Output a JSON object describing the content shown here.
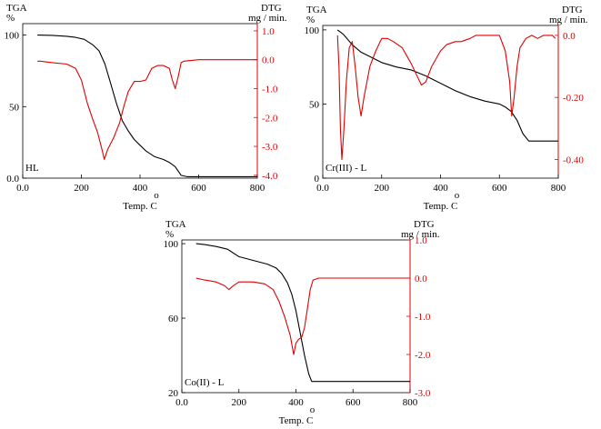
{
  "chart_data": [
    {
      "type": "line",
      "label": "HL",
      "xlabel": "Temp. C",
      "xlabel_degree": "o",
      "xlim": [
        0,
        800
      ],
      "x_ticks": [
        "0.0",
        "200",
        "400",
        "600",
        "800"
      ],
      "x_tick_values": [
        0,
        200,
        400,
        600,
        800
      ],
      "left_axis": {
        "title": "TGA",
        "unit": "%",
        "ylim": [
          0,
          108
        ],
        "ticks": [
          "0.0",
          "50",
          "100"
        ],
        "tick_values": [
          0,
          50,
          100
        ]
      },
      "right_axis": {
        "title": "DTG",
        "unit": "mg / min.",
        "ylim": [
          -4.1,
          1.25
        ],
        "ticks": [
          "1.0",
          "0.0",
          "-1.0",
          "-2.0",
          "-3.0",
          "-4.0"
        ],
        "tick_values": [
          1.0,
          0.0,
          -1.0,
          -2.0,
          -3.0,
          -4.0
        ]
      },
      "series": [
        {
          "axis": "left",
          "color": "#000000",
          "points": [
            [
              50,
              100
            ],
            [
              100,
              99.8
            ],
            [
              150,
              99.2
            ],
            [
              180,
              98.4
            ],
            [
              210,
              97
            ],
            [
              240,
              93
            ],
            [
              260,
              89
            ],
            [
              280,
              80
            ],
            [
              300,
              66
            ],
            [
              320,
              52
            ],
            [
              340,
              40
            ],
            [
              360,
              33
            ],
            [
              380,
              27
            ],
            [
              400,
              23
            ],
            [
              420,
              19
            ],
            [
              450,
              15
            ],
            [
              480,
              13
            ],
            [
              500,
              11
            ],
            [
              520,
              8
            ],
            [
              540,
              2
            ],
            [
              560,
              1
            ],
            [
              600,
              1
            ],
            [
              800,
              1
            ]
          ]
        },
        {
          "axis": "right",
          "color": "#e00000",
          "points": [
            [
              50,
              -0.05
            ],
            [
              60,
              -0.05
            ],
            [
              100,
              -0.1
            ],
            [
              150,
              -0.15
            ],
            [
              180,
              -0.3
            ],
            [
              200,
              -0.7
            ],
            [
              220,
              -1.5
            ],
            [
              240,
              -2.1
            ],
            [
              255,
              -2.5
            ],
            [
              270,
              -3.1
            ],
            [
              278,
              -3.45
            ],
            [
              290,
              -3.1
            ],
            [
              310,
              -2.7
            ],
            [
              330,
              -2.2
            ],
            [
              345,
              -1.6
            ],
            [
              360,
              -1.1
            ],
            [
              380,
              -0.75
            ],
            [
              400,
              -0.75
            ],
            [
              420,
              -0.7
            ],
            [
              440,
              -0.3
            ],
            [
              460,
              -0.2
            ],
            [
              480,
              -0.2
            ],
            [
              500,
              -0.3
            ],
            [
              510,
              -0.7
            ],
            [
              520,
              -1.0
            ],
            [
              530,
              -0.6
            ],
            [
              540,
              -0.1
            ],
            [
              550,
              -0.05
            ],
            [
              600,
              0.0
            ],
            [
              800,
              0.0
            ]
          ]
        }
      ]
    },
    {
      "type": "line",
      "label": "Cr(III) - L",
      "xlabel": "Temp. C",
      "xlabel_degree": "o",
      "xlim": [
        0,
        800
      ],
      "x_ticks": [
        "0.0",
        "200",
        "400",
        "600",
        "800"
      ],
      "x_tick_values": [
        0,
        200,
        400,
        600,
        800
      ],
      "left_axis": {
        "title": "TGA",
        "unit": "%",
        "ylim": [
          0,
          103
        ],
        "ticks": [
          "0",
          "50",
          "100"
        ],
        "tick_values": [
          0,
          50,
          100
        ]
      },
      "right_axis": {
        "title": "DTG",
        "unit": "mg / min.",
        "ylim": [
          -0.46,
          0.032
        ],
        "ticks": [
          "0.0",
          "-0.20",
          "-0.40"
        ],
        "tick_values": [
          0.0,
          -0.2,
          -0.4
        ]
      },
      "series": [
        {
          "axis": "left",
          "color": "#000000",
          "points": [
            [
              50,
              100
            ],
            [
              70,
              97
            ],
            [
              100,
              90
            ],
            [
              130,
              85
            ],
            [
              160,
              82
            ],
            [
              200,
              78
            ],
            [
              250,
              75
            ],
            [
              300,
              73
            ],
            [
              350,
              69
            ],
            [
              400,
              64
            ],
            [
              450,
              59
            ],
            [
              500,
              55
            ],
            [
              550,
              52
            ],
            [
              600,
              50
            ],
            [
              620,
              48
            ],
            [
              640,
              45
            ],
            [
              660,
              39
            ],
            [
              680,
              30
            ],
            [
              700,
              25
            ],
            [
              720,
              25
            ],
            [
              800,
              25
            ]
          ]
        },
        {
          "axis": "right",
          "color": "#e00000",
          "points": [
            [
              50,
              0.0
            ],
            [
              55,
              -0.1
            ],
            [
              60,
              -0.3
            ],
            [
              65,
              -0.4
            ],
            [
              72,
              -0.3
            ],
            [
              80,
              -0.15
            ],
            [
              90,
              -0.04
            ],
            [
              100,
              -0.02
            ],
            [
              110,
              -0.1
            ],
            [
              120,
              -0.2
            ],
            [
              130,
              -0.26
            ],
            [
              140,
              -0.2
            ],
            [
              160,
              -0.1
            ],
            [
              180,
              -0.05
            ],
            [
              200,
              -0.01
            ],
            [
              220,
              -0.01
            ],
            [
              240,
              -0.02
            ],
            [
              270,
              -0.04
            ],
            [
              300,
              -0.09
            ],
            [
              320,
              -0.13
            ],
            [
              335,
              -0.16
            ],
            [
              350,
              -0.15
            ],
            [
              370,
              -0.1
            ],
            [
              400,
              -0.05
            ],
            [
              420,
              -0.03
            ],
            [
              450,
              -0.02
            ],
            [
              470,
              -0.02
            ],
            [
              500,
              -0.01
            ],
            [
              520,
              0.0
            ],
            [
              560,
              0.0
            ],
            [
              600,
              0.0
            ],
            [
              620,
              -0.05
            ],
            [
              635,
              -0.15
            ],
            [
              642,
              -0.26
            ],
            [
              650,
              -0.2
            ],
            [
              660,
              -0.1
            ],
            [
              670,
              -0.04
            ],
            [
              690,
              -0.01
            ],
            [
              710,
              0.0
            ],
            [
              730,
              -0.01
            ],
            [
              750,
              0.0
            ],
            [
              780,
              0.0
            ],
            [
              790,
              -0.01
            ]
          ]
        }
      ]
    },
    {
      "type": "line",
      "label": "Co(II) - L",
      "xlabel": "Temp. C",
      "xlabel_degree": "o",
      "xlim": [
        0,
        800
      ],
      "x_ticks": [
        "0.0",
        "200",
        "400",
        "600",
        "800"
      ],
      "x_tick_values": [
        0,
        200,
        400,
        600,
        800
      ],
      "left_axis": {
        "title": "TGA",
        "unit": "%",
        "ylim": [
          20,
          102
        ],
        "ticks": [
          "20",
          "60",
          "100"
        ],
        "tick_values": [
          20,
          60,
          100
        ]
      },
      "right_axis": {
        "title": "DTG",
        "unit": "mg / min.",
        "ylim": [
          -3.0,
          1.0
        ],
        "ticks": [
          "1.0",
          "0.0",
          "-1.0",
          "-2.0",
          "-3.0"
        ],
        "tick_values": [
          1.0,
          0.0,
          -1.0,
          -2.0,
          -3.0
        ]
      },
      "series": [
        {
          "axis": "left",
          "color": "#000000",
          "points": [
            [
              50,
              100
            ],
            [
              80,
              99.5
            ],
            [
              120,
              98.5
            ],
            [
              160,
              97
            ],
            [
              200,
              93
            ],
            [
              250,
              91
            ],
            [
              300,
              89
            ],
            [
              330,
              87
            ],
            [
              350,
              84
            ],
            [
              370,
              79
            ],
            [
              385,
              73
            ],
            [
              400,
              64
            ],
            [
              415,
              52
            ],
            [
              430,
              40
            ],
            [
              445,
              30
            ],
            [
              455,
              26
            ],
            [
              470,
              26
            ],
            [
              500,
              26
            ],
            [
              800,
              26
            ]
          ]
        },
        {
          "axis": "right",
          "color": "#e00000",
          "points": [
            [
              50,
              0.0
            ],
            [
              80,
              -0.05
            ],
            [
              120,
              -0.1
            ],
            [
              150,
              -0.2
            ],
            [
              165,
              -0.3
            ],
            [
              180,
              -0.2
            ],
            [
              200,
              -0.1
            ],
            [
              250,
              -0.1
            ],
            [
              290,
              -0.15
            ],
            [
              320,
              -0.3
            ],
            [
              340,
              -0.6
            ],
            [
              360,
              -1.0
            ],
            [
              380,
              -1.5
            ],
            [
              392,
              -2.0
            ],
            [
              400,
              -1.7
            ],
            [
              410,
              -1.6
            ],
            [
              420,
              -1.55
            ],
            [
              430,
              -1.3
            ],
            [
              440,
              -0.8
            ],
            [
              450,
              -0.3
            ],
            [
              460,
              -0.05
            ],
            [
              480,
              0.0
            ],
            [
              600,
              0.0
            ],
            [
              800,
              0.0
            ]
          ]
        }
      ]
    }
  ]
}
